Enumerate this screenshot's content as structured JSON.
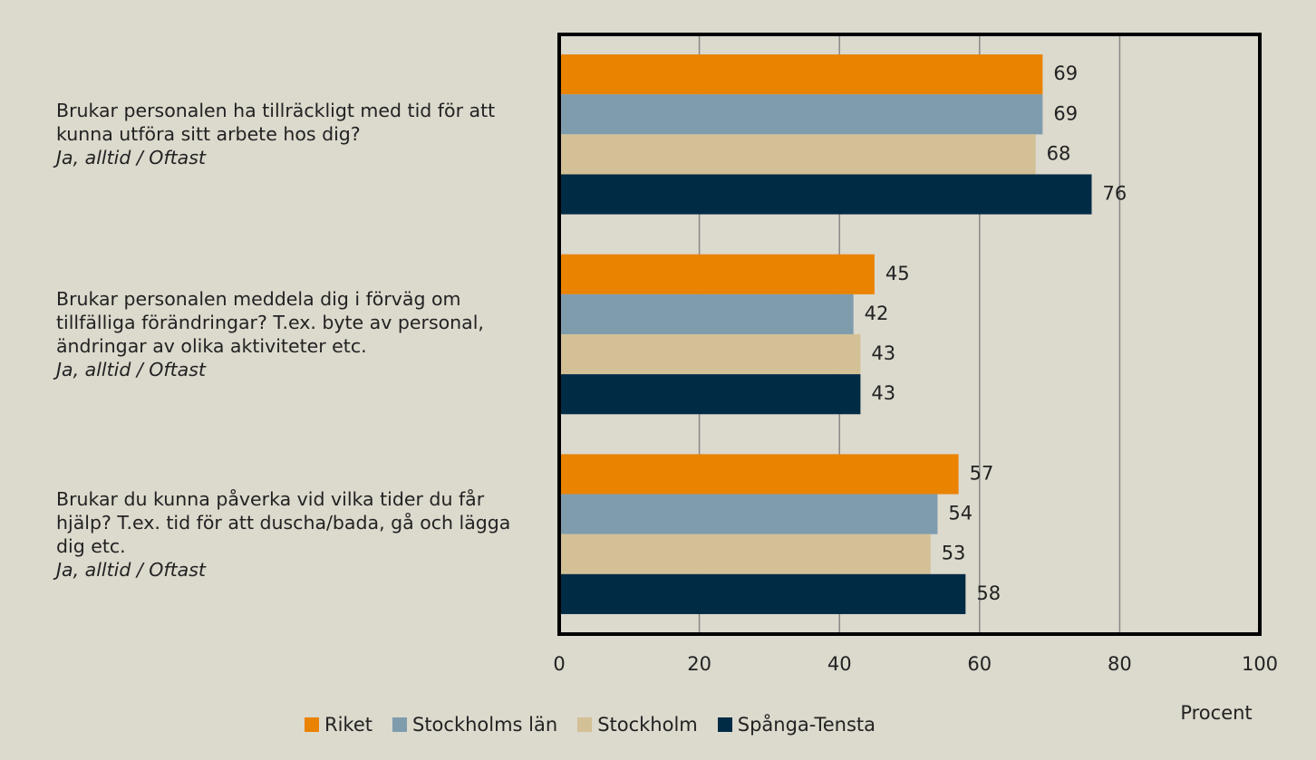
{
  "chart_data": {
    "type": "bar",
    "orientation": "horizontal",
    "categories": [
      "Brukar personalen ha tillräckligt med tid för att kunna utföra sitt arbete hos dig?",
      "Brukar personalen meddela dig i förväg om tillfälliga förändringar? T.ex. byte av personal, ändringar av olika aktiviteter etc.",
      "Brukar du kunna påverka vid vilka tider du får hjälp? T.ex. tid för att duscha/bada, gå och lägga dig etc."
    ],
    "category_notes": [
      "Ja, alltid / Oftast",
      "Ja, alltid / Oftast",
      "Ja, alltid / Oftast"
    ],
    "series": [
      {
        "name": "Riket",
        "color": "#e98300",
        "values": [
          69,
          45,
          57
        ]
      },
      {
        "name": "Stockholms län",
        "color": "#7f9cad",
        "values": [
          69,
          42,
          54
        ]
      },
      {
        "name": "Stockholm",
        "color": "#d3c096",
        "values": [
          68,
          43,
          53
        ]
      },
      {
        "name": "Spånga-Tensta",
        "color": "#002b45",
        "values": [
          76,
          43,
          58
        ]
      }
    ],
    "xlim": [
      0,
      100
    ],
    "xticks": [
      0,
      20,
      40,
      60,
      80,
      100
    ],
    "x_label": "Procent",
    "grid": true,
    "legend": "bottom"
  }
}
